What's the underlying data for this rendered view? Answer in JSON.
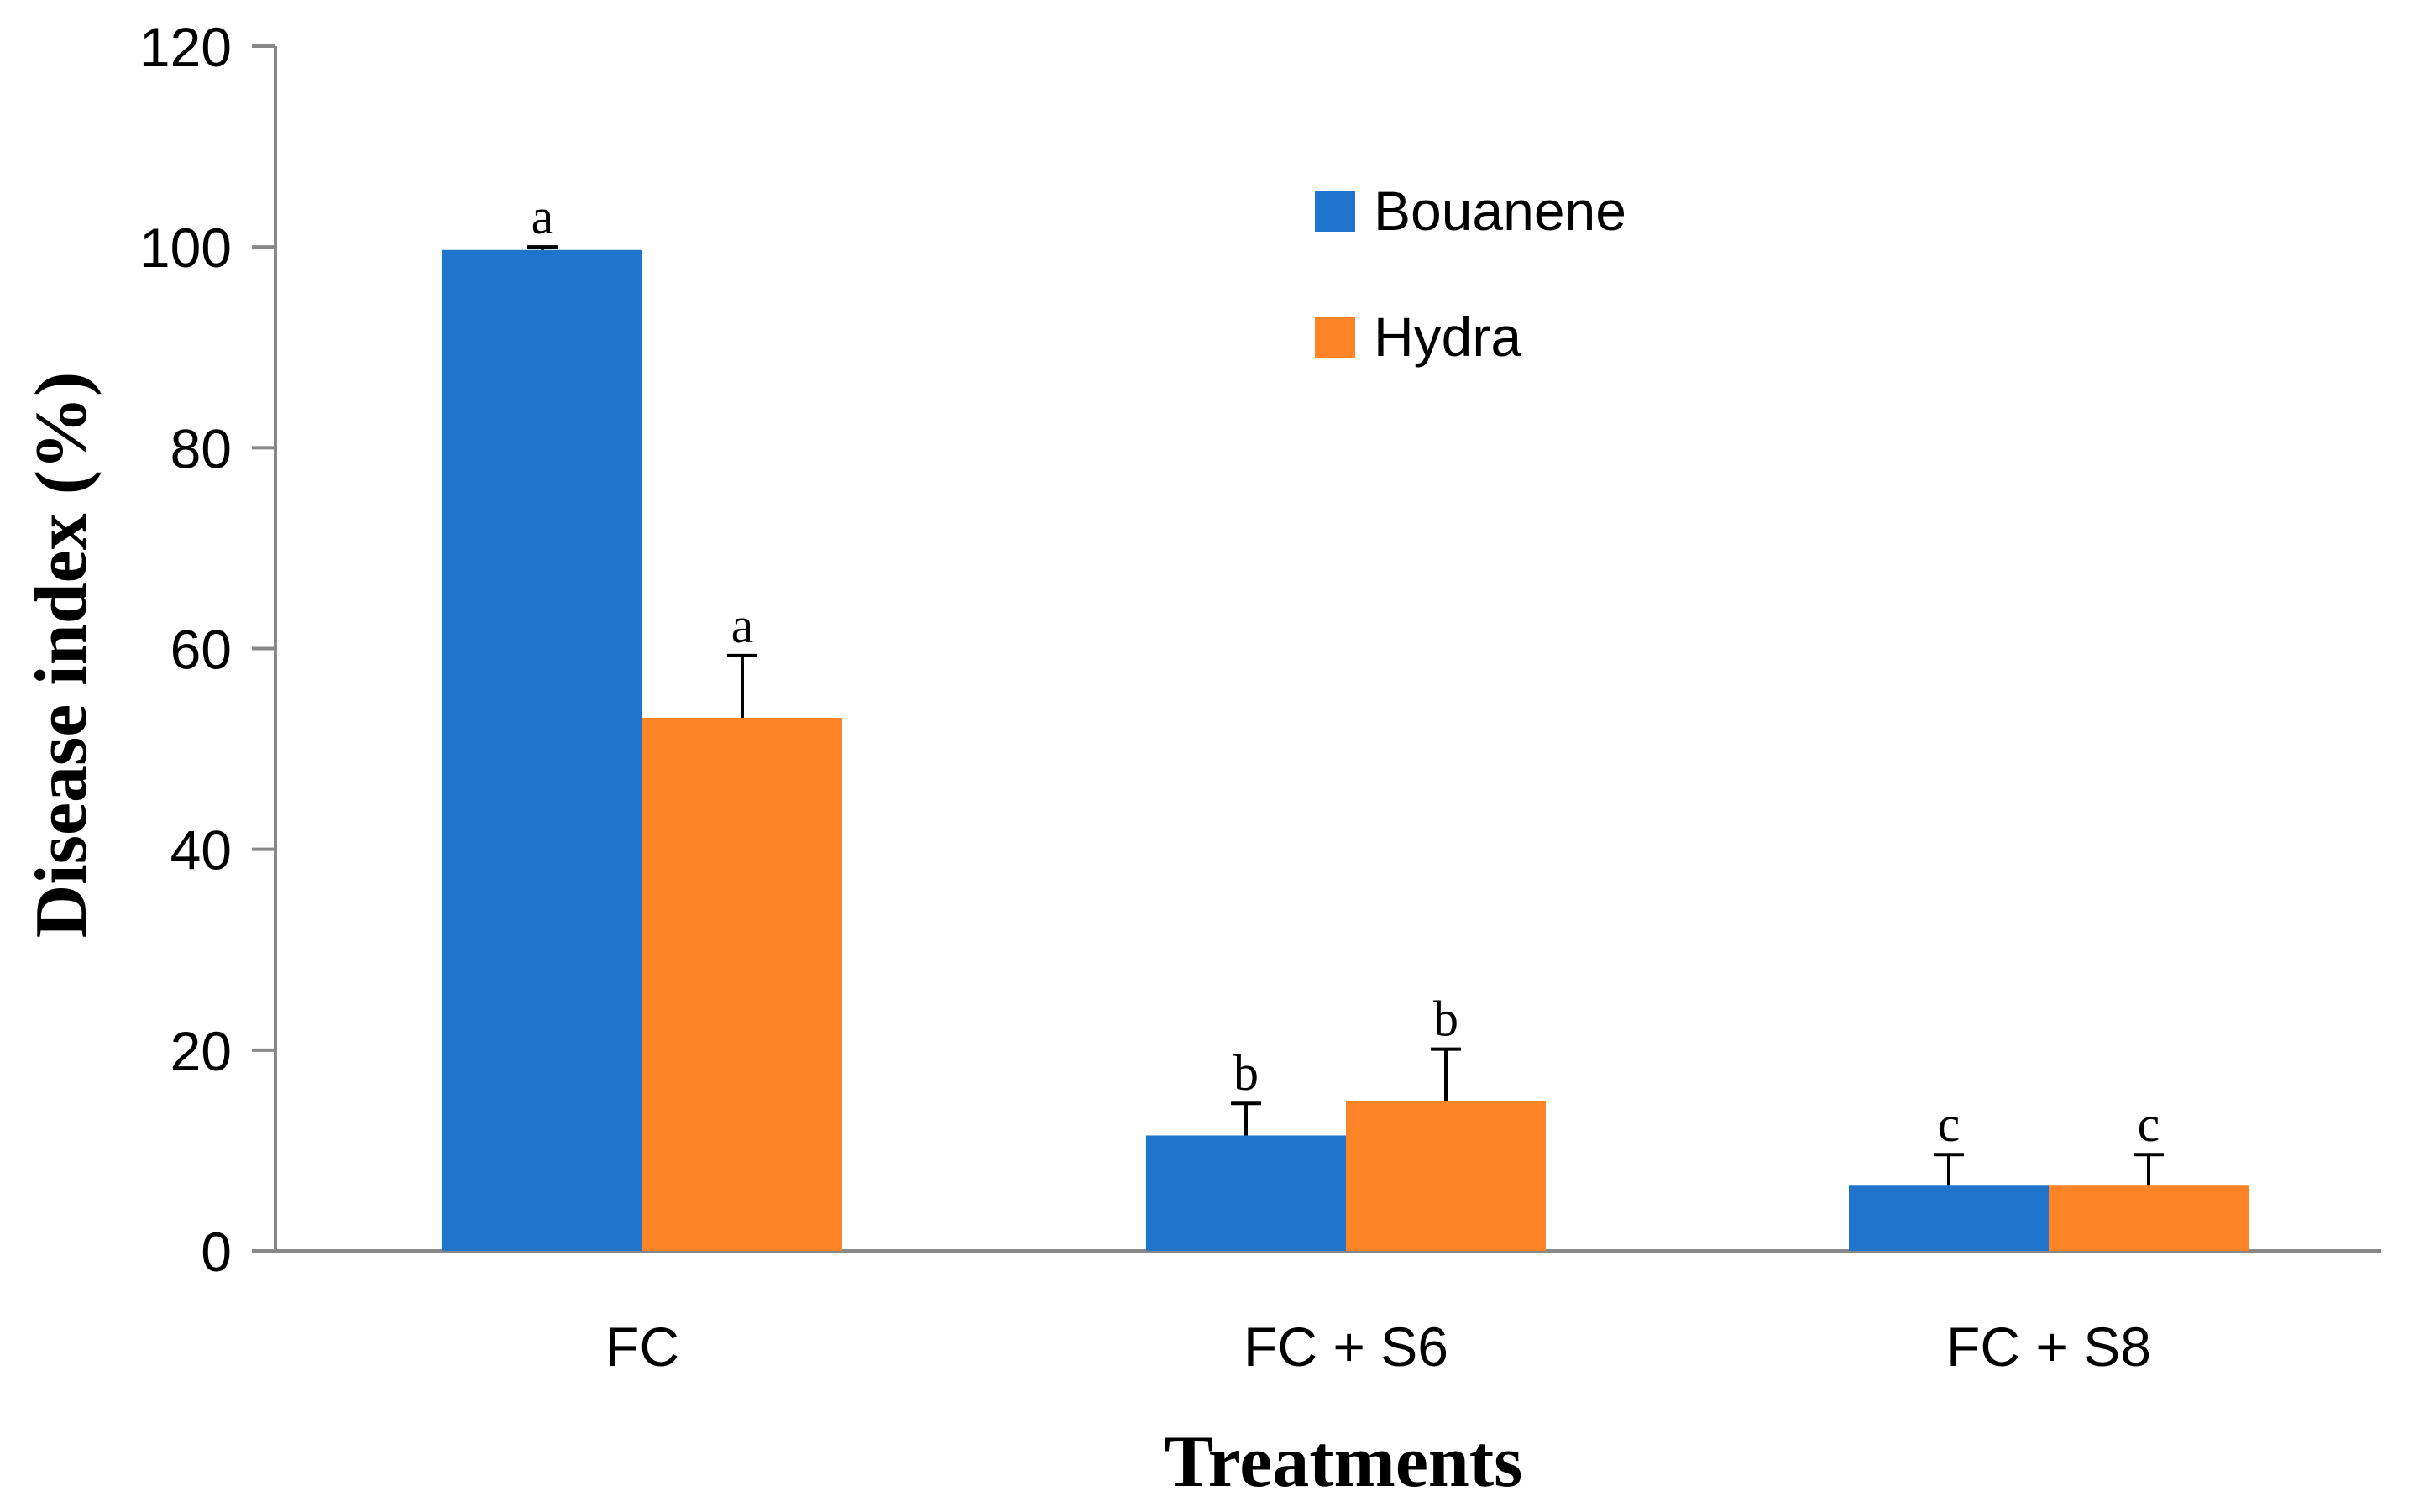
{
  "chart_data": {
    "type": "bar",
    "title": "",
    "xlabel": "Treatments",
    "ylabel": "Disease index  (%)",
    "categories": [
      "FC",
      "FC + S6",
      "FC + S8"
    ],
    "series": [
      {
        "name": "Bouanene",
        "color": "#1f74cc",
        "values": [
          99.7,
          11.5,
          6.5
        ],
        "errors": [
          0.3,
          3.2,
          3.1
        ],
        "letters": [
          "a",
          "b",
          "c"
        ]
      },
      {
        "name": "Hydra",
        "color": "#ff8427",
        "values": [
          53.1,
          14.9,
          6.5
        ],
        "errors": [
          6.2,
          5.2,
          3.1
        ],
        "letters": [
          "a",
          "b",
          "c"
        ]
      }
    ],
    "ylim": [
      0,
      120
    ],
    "yticks": [
      0,
      20,
      40,
      60,
      80,
      100,
      120
    ],
    "legend_position": "top-center",
    "grid": false
  },
  "colors": {
    "axis": "#888888",
    "text": "#000000",
    "errorbar": "#000000"
  }
}
